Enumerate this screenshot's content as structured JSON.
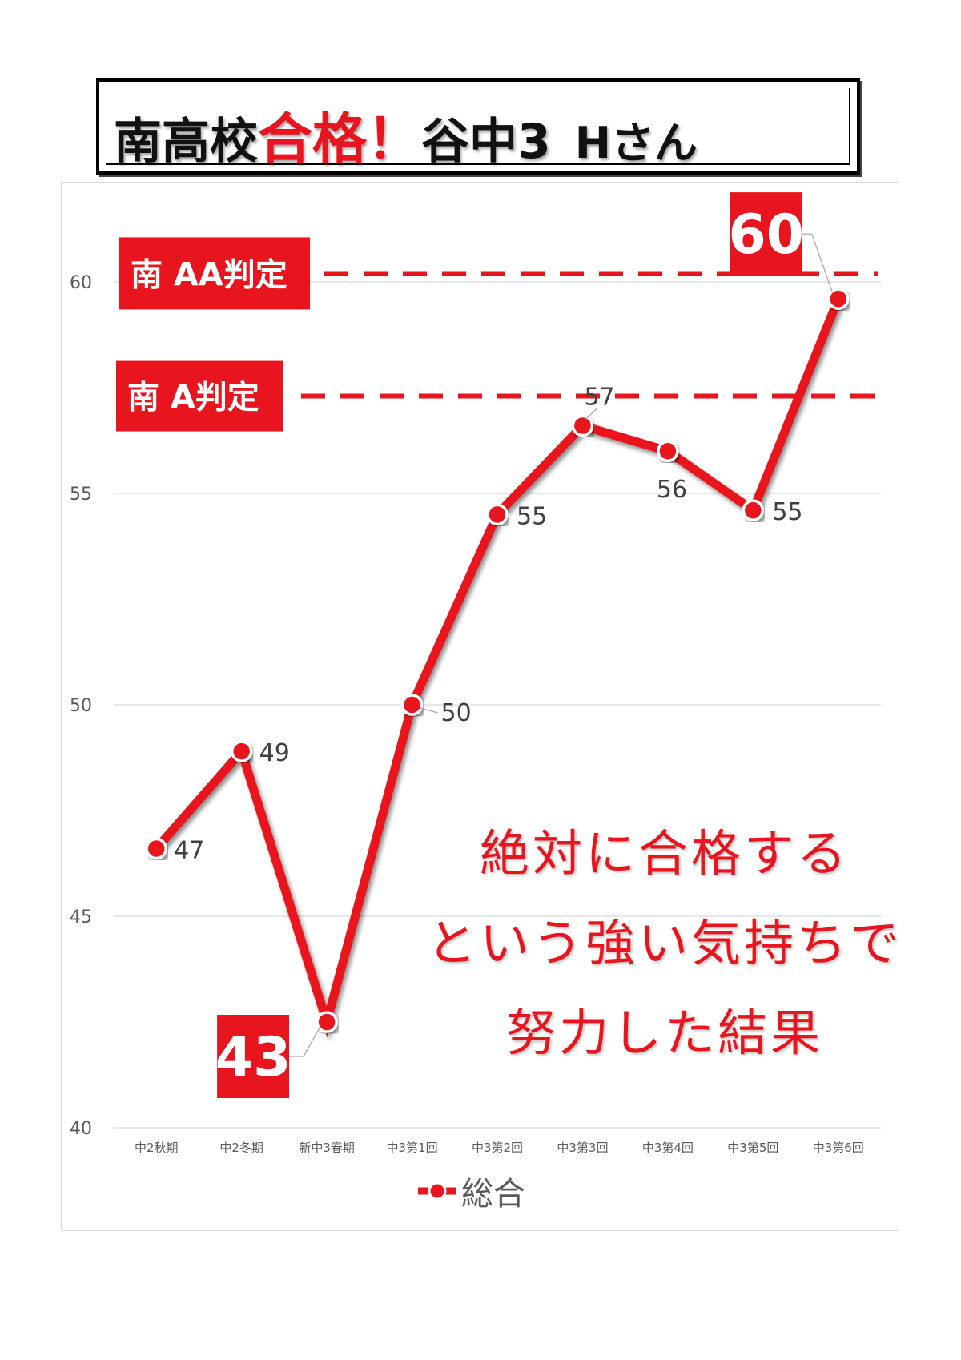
{
  "title": {
    "part1": "南高校",
    "part2": "合格！",
    "part3": "谷中3",
    "part4": "Hさん"
  },
  "message": {
    "line1": "絶対に合格する",
    "line2": "という強い気持ちで",
    "line3": "努力した結果"
  },
  "colors": {
    "accent": "#e8141e",
    "text": "#404040",
    "grid": "#d9d9d9"
  },
  "chart_data": {
    "type": "line",
    "categories": [
      "中2秋期",
      "中2冬期",
      "新中3春期",
      "中3第1回",
      "中3第2回",
      "中3第3回",
      "中3第4回",
      "中3第5回",
      "中3第6回"
    ],
    "series": [
      {
        "name": "総合",
        "values": [
          46.6,
          48.9,
          42.5,
          50.0,
          54.5,
          56.6,
          56.0,
          54.6,
          59.6
        ],
        "labels": [
          "47",
          "49",
          "43",
          "50",
          "55",
          "57",
          "56",
          "55",
          "60"
        ]
      }
    ],
    "ylim": [
      40,
      62
    ],
    "yticks": [
      40,
      45,
      50,
      55,
      60
    ],
    "grid": true,
    "legend": "bottom",
    "reference_lines": [
      {
        "label": "南 AA判定",
        "value": 60.2
      },
      {
        "label": "南 A判定",
        "value": 57.3
      }
    ],
    "highlighted_labels": [
      "43",
      "60"
    ]
  }
}
